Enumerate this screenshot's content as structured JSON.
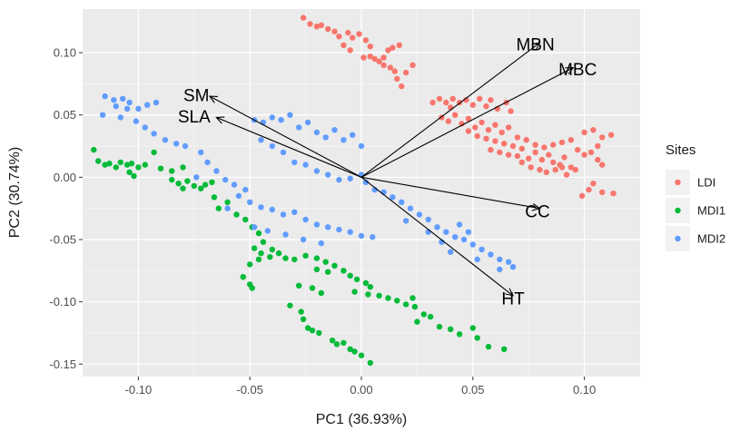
{
  "chart_data": {
    "type": "scatter",
    "xlabel": "PC1 (36.93%)",
    "ylabel": "PC2 (30.74%)",
    "xlim": [
      -0.125,
      0.125
    ],
    "ylim": [
      -0.16,
      0.135
    ],
    "x_ticks": [
      -0.1,
      -0.05,
      0.0,
      0.05,
      0.1
    ],
    "x_tick_labels": [
      "-0.10",
      "-0.05",
      "0.00",
      "0.05",
      "0.10"
    ],
    "y_ticks": [
      -0.15,
      -0.1,
      -0.05,
      0.0,
      0.05,
      0.1
    ],
    "y_tick_labels": [
      "-0.15",
      "-0.10",
      "-0.05",
      "0.00",
      "0.05",
      "0.10"
    ],
    "grid": true,
    "legend": {
      "title": "Sites",
      "placement": "right",
      "entries": [
        {
          "name": "LDI",
          "color": "#F8766D"
        },
        {
          "name": "MDI1",
          "color": "#00BA38"
        },
        {
          "name": "MDI2",
          "color": "#619CFF"
        }
      ]
    },
    "vectors": [
      {
        "name": "MBN",
        "x": 0.08,
        "y": 0.108,
        "label_x": 0.078,
        "label_y": 0.107
      },
      {
        "name": "MBC",
        "x": 0.095,
        "y": 0.088,
        "label_x": 0.097,
        "label_y": 0.087
      },
      {
        "name": "SM",
        "x": -0.068,
        "y": 0.065,
        "label_x": -0.074,
        "label_y": 0.066
      },
      {
        "name": "SLA",
        "x": -0.065,
        "y": 0.048,
        "label_x": -0.075,
        "label_y": 0.049
      },
      {
        "name": "CC",
        "x": 0.08,
        "y": -0.025,
        "label_x": 0.079,
        "label_y": -0.027
      },
      {
        "name": "HT",
        "x": 0.068,
        "y": -0.095,
        "label_x": 0.068,
        "label_y": -0.097
      }
    ],
    "series": [
      {
        "name": "LDI",
        "color": "#F8766D",
        "points": [
          [
            -0.026,
            0.128
          ],
          [
            -0.023,
            0.123
          ],
          [
            -0.02,
            0.121
          ],
          [
            -0.018,
            0.122
          ],
          [
            -0.015,
            0.119
          ],
          [
            -0.012,
            0.117
          ],
          [
            -0.01,
            0.113
          ],
          [
            -0.006,
            0.116
          ],
          [
            -0.004,
            0.112
          ],
          [
            -0.001,
            0.115
          ],
          [
            0.002,
            0.11
          ],
          [
            0.004,
            0.105
          ],
          [
            -0.008,
            0.106
          ],
          [
            -0.005,
            0.102
          ],
          [
            0.001,
            0.096
          ],
          [
            0.004,
            0.097
          ],
          [
            0.006,
            0.095
          ],
          [
            0.008,
            0.093
          ],
          [
            0.01,
            0.096
          ],
          [
            0.012,
            0.102
          ],
          [
            0.014,
            0.104
          ],
          [
            0.017,
            0.106
          ],
          [
            0.01,
            0.09
          ],
          [
            0.013,
            0.088
          ],
          [
            0.015,
            0.085
          ],
          [
            0.02,
            0.084
          ],
          [
            0.023,
            0.09
          ],
          [
            0.016,
            0.079
          ],
          [
            0.018,
            0.073
          ],
          [
            0.032,
            0.06
          ],
          [
            0.035,
            0.063
          ],
          [
            0.038,
            0.06
          ],
          [
            0.041,
            0.063
          ],
          [
            0.044,
            0.06
          ],
          [
            0.04,
            0.056
          ],
          [
            0.047,
            0.062
          ],
          [
            0.05,
            0.058
          ],
          [
            0.053,
            0.063
          ],
          [
            0.056,
            0.057
          ],
          [
            0.058,
            0.062
          ],
          [
            0.061,
            0.055
          ],
          [
            0.065,
            0.06
          ],
          [
            0.067,
            0.053
          ],
          [
            0.036,
            0.048
          ],
          [
            0.039,
            0.045
          ],
          [
            0.042,
            0.05
          ],
          [
            0.045,
            0.043
          ],
          [
            0.048,
            0.047
          ],
          [
            0.051,
            0.04
          ],
          [
            0.054,
            0.044
          ],
          [
            0.057,
            0.038
          ],
          [
            0.06,
            0.042
          ],
          [
            0.063,
            0.036
          ],
          [
            0.066,
            0.04
          ],
          [
            0.07,
            0.032
          ],
          [
            0.048,
            0.037
          ],
          [
            0.052,
            0.033
          ],
          [
            0.056,
            0.031
          ],
          [
            0.06,
            0.029
          ],
          [
            0.064,
            0.027
          ],
          [
            0.068,
            0.025
          ],
          [
            0.072,
            0.023
          ],
          [
            0.058,
            0.022
          ],
          [
            0.062,
            0.02
          ],
          [
            0.066,
            0.018
          ],
          [
            0.07,
            0.017
          ],
          [
            0.075,
            0.015
          ],
          [
            0.078,
            0.02
          ],
          [
            0.081,
            0.014
          ],
          [
            0.084,
            0.018
          ],
          [
            0.086,
            0.012
          ],
          [
            0.089,
            0.01
          ],
          [
            0.091,
            0.016
          ],
          [
            0.094,
            0.008
          ],
          [
            0.096,
            0.006
          ],
          [
            0.072,
            0.012
          ],
          [
            0.076,
            0.008
          ],
          [
            0.08,
            0.006
          ],
          [
            0.083,
            0.004
          ],
          [
            0.087,
            0.006
          ],
          [
            0.09,
            0.008
          ],
          [
            0.092,
            0.002
          ],
          [
            0.074,
            0.03
          ],
          [
            0.078,
            0.026
          ],
          [
            0.082,
            0.024
          ],
          [
            0.086,
            0.026
          ],
          [
            0.09,
            0.028
          ],
          [
            0.094,
            0.03
          ],
          [
            0.097,
            0.022
          ],
          [
            0.1,
            0.018
          ],
          [
            0.103,
            0.02
          ],
          [
            0.106,
            0.014
          ],
          [
            0.108,
            0.01
          ],
          [
            0.1,
            0.036
          ],
          [
            0.104,
            0.038
          ],
          [
            0.108,
            0.032
          ],
          [
            0.112,
            0.034
          ],
          [
            0.106,
            0.025
          ],
          [
            0.104,
            -0.005
          ],
          [
            0.108,
            -0.012
          ],
          [
            0.113,
            -0.013
          ],
          [
            0.099,
            -0.015
          ],
          [
            0.102,
            -0.01
          ]
        ]
      },
      {
        "name": "MDI1",
        "color": "#00BA38",
        "points": [
          [
            -0.12,
            0.022
          ],
          [
            -0.118,
            0.013
          ],
          [
            -0.115,
            0.01
          ],
          [
            -0.113,
            0.011
          ],
          [
            -0.11,
            0.008
          ],
          [
            -0.108,
            0.012
          ],
          [
            -0.105,
            0.01
          ],
          [
            -0.103,
            0.011
          ],
          [
            -0.1,
            0.008
          ],
          [
            -0.104,
            0.004
          ],
          [
            -0.102,
            0.001
          ],
          [
            -0.097,
            0.01
          ],
          [
            -0.093,
            0.02
          ],
          [
            -0.09,
            0.007
          ],
          [
            -0.085,
            0.005
          ],
          [
            -0.08,
            0.008
          ],
          [
            -0.085,
            -0.002
          ],
          [
            -0.082,
            -0.005
          ],
          [
            -0.08,
            -0.009
          ],
          [
            -0.078,
            -0.003
          ],
          [
            -0.075,
            -0.007
          ],
          [
            -0.072,
            -0.009
          ],
          [
            -0.07,
            -0.006
          ],
          [
            -0.067,
            -0.004
          ],
          [
            -0.066,
            -0.016
          ],
          [
            -0.064,
            -0.025
          ],
          [
            -0.06,
            -0.02
          ],
          [
            -0.056,
            -0.03
          ],
          [
            -0.052,
            -0.034
          ],
          [
            -0.049,
            -0.04
          ],
          [
            -0.046,
            -0.045
          ],
          [
            -0.044,
            -0.052
          ],
          [
            -0.048,
            -0.057
          ],
          [
            -0.045,
            -0.061
          ],
          [
            -0.041,
            -0.064
          ],
          [
            -0.037,
            -0.061
          ],
          [
            -0.034,
            -0.065
          ],
          [
            -0.03,
            -0.066
          ],
          [
            -0.05,
            -0.07
          ],
          [
            -0.053,
            -0.08
          ],
          [
            -0.05,
            -0.086
          ],
          [
            -0.049,
            -0.089
          ],
          [
            -0.04,
            -0.058
          ],
          [
            -0.046,
            -0.066
          ],
          [
            -0.025,
            -0.063
          ],
          [
            -0.02,
            -0.065
          ],
          [
            -0.016,
            -0.068
          ],
          [
            -0.012,
            -0.071
          ],
          [
            -0.02,
            -0.074
          ],
          [
            -0.015,
            -0.076
          ],
          [
            -0.008,
            -0.075
          ],
          [
            -0.005,
            -0.079
          ],
          [
            -0.002,
            -0.082
          ],
          [
            0.002,
            -0.085
          ],
          [
            0.004,
            -0.088
          ],
          [
            -0.003,
            -0.092
          ],
          [
            0.003,
            -0.094
          ],
          [
            -0.028,
            -0.087
          ],
          [
            -0.022,
            -0.089
          ],
          [
            -0.018,
            -0.093
          ],
          [
            0.008,
            -0.095
          ],
          [
            0.012,
            -0.097
          ],
          [
            0.016,
            -0.099
          ],
          [
            0.02,
            -0.102
          ],
          [
            0.024,
            -0.104
          ],
          [
            0.023,
            -0.097
          ],
          [
            0.028,
            -0.11
          ],
          [
            0.031,
            -0.112
          ],
          [
            0.025,
            -0.116
          ],
          [
            0.035,
            -0.12
          ],
          [
            0.04,
            -0.122
          ],
          [
            0.044,
            -0.126
          ],
          [
            0.05,
            -0.121
          ],
          [
            0.052,
            -0.129
          ],
          [
            0.057,
            -0.136
          ],
          [
            0.064,
            -0.138
          ],
          [
            -0.032,
            -0.103
          ],
          [
            -0.027,
            -0.108
          ],
          [
            -0.026,
            -0.114
          ],
          [
            -0.024,
            -0.121
          ],
          [
            -0.022,
            -0.123
          ],
          [
            -0.019,
            -0.125
          ],
          [
            -0.013,
            -0.131
          ],
          [
            -0.011,
            -0.134
          ],
          [
            -0.008,
            -0.133
          ],
          [
            -0.005,
            -0.138
          ],
          [
            -0.003,
            -0.14
          ],
          [
            0.0,
            -0.143
          ],
          [
            0.004,
            -0.149
          ]
        ]
      },
      {
        "name": "MDI2",
        "color": "#619CFF",
        "points": [
          [
            -0.115,
            0.065
          ],
          [
            -0.111,
            0.062
          ],
          [
            -0.107,
            0.063
          ],
          [
            -0.104,
            0.06
          ],
          [
            -0.11,
            0.057
          ],
          [
            -0.105,
            0.055
          ],
          [
            -0.1,
            0.055
          ],
          [
            -0.096,
            0.058
          ],
          [
            -0.092,
            0.06
          ],
          [
            -0.116,
            0.05
          ],
          [
            -0.108,
            0.048
          ],
          [
            -0.101,
            0.045
          ],
          [
            -0.097,
            0.04
          ],
          [
            -0.093,
            0.035
          ],
          [
            -0.088,
            0.03
          ],
          [
            -0.083,
            0.027
          ],
          [
            -0.079,
            0.025
          ],
          [
            -0.072,
            0.02
          ],
          [
            -0.069,
            0.012
          ],
          [
            -0.065,
            0.005
          ],
          [
            -0.061,
            -0.002
          ],
          [
            -0.057,
            -0.006
          ],
          [
            -0.052,
            -0.01
          ],
          [
            -0.074,
            0.0
          ],
          [
            -0.048,
            0.046
          ],
          [
            -0.044,
            0.044
          ],
          [
            -0.04,
            0.048
          ],
          [
            -0.036,
            0.046
          ],
          [
            -0.032,
            0.05
          ],
          [
            -0.028,
            0.04
          ],
          [
            -0.024,
            0.044
          ],
          [
            -0.02,
            0.036
          ],
          [
            -0.016,
            0.032
          ],
          [
            -0.012,
            0.038
          ],
          [
            -0.008,
            0.03
          ],
          [
            -0.004,
            0.034
          ],
          [
            0.0,
            0.025
          ],
          [
            -0.045,
            0.03
          ],
          [
            -0.04,
            0.025
          ],
          [
            -0.035,
            0.02
          ],
          [
            -0.03,
            0.012
          ],
          [
            -0.025,
            0.01
          ],
          [
            -0.02,
            0.005
          ],
          [
            -0.015,
            0.002
          ],
          [
            -0.01,
            -0.002
          ],
          [
            -0.005,
            -0.001
          ],
          [
            0.0,
            0.002
          ],
          [
            -0.055,
            -0.015
          ],
          [
            -0.05,
            -0.02
          ],
          [
            -0.045,
            -0.024
          ],
          [
            -0.04,
            -0.026
          ],
          [
            -0.035,
            -0.03
          ],
          [
            -0.03,
            -0.028
          ],
          [
            -0.025,
            -0.034
          ],
          [
            -0.02,
            -0.038
          ],
          [
            -0.015,
            -0.04
          ],
          [
            -0.01,
            -0.042
          ],
          [
            -0.005,
            -0.044
          ],
          [
            0.0,
            -0.047
          ],
          [
            0.005,
            -0.048
          ],
          [
            -0.06,
            -0.025
          ],
          [
            -0.048,
            -0.04
          ],
          [
            -0.042,
            -0.043
          ],
          [
            -0.034,
            -0.046
          ],
          [
            -0.026,
            -0.05
          ],
          [
            -0.018,
            -0.053
          ],
          [
            0.002,
            -0.004
          ],
          [
            0.006,
            -0.01
          ],
          [
            0.01,
            -0.012
          ],
          [
            0.014,
            -0.016
          ],
          [
            0.018,
            -0.02
          ],
          [
            0.022,
            -0.025
          ],
          [
            0.026,
            -0.03
          ],
          [
            0.03,
            -0.034
          ],
          [
            0.034,
            -0.04
          ],
          [
            0.038,
            -0.044
          ],
          [
            0.042,
            -0.048
          ],
          [
            0.046,
            -0.05
          ],
          [
            0.05,
            -0.054
          ],
          [
            0.054,
            -0.058
          ],
          [
            0.058,
            -0.062
          ],
          [
            0.062,
            -0.066
          ],
          [
            0.066,
            -0.068
          ],
          [
            0.068,
            -0.072
          ],
          [
            0.062,
            -0.074
          ],
          [
            0.052,
            -0.066
          ],
          [
            0.044,
            -0.038
          ],
          [
            0.048,
            -0.044
          ],
          [
            0.036,
            -0.052
          ],
          [
            0.04,
            -0.06
          ],
          [
            0.03,
            -0.044
          ],
          [
            0.02,
            -0.035
          ]
        ]
      }
    ]
  }
}
